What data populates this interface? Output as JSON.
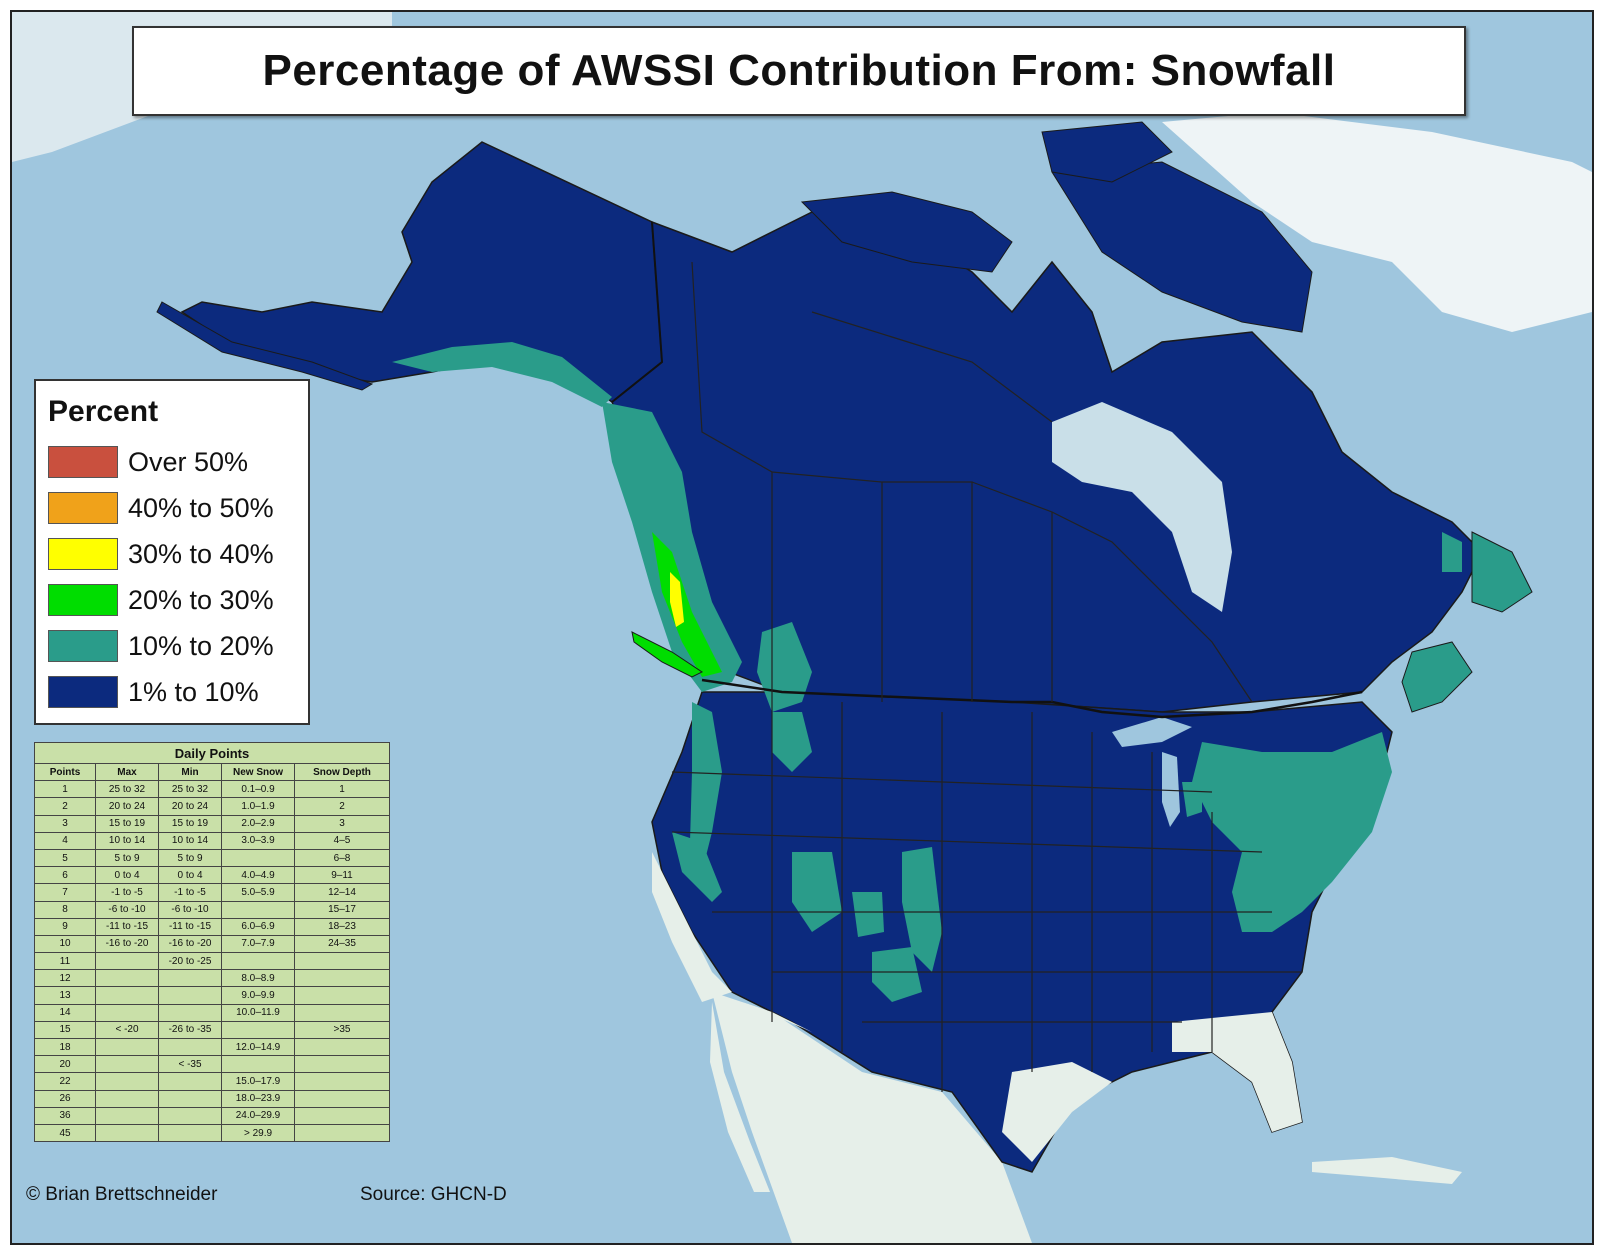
{
  "title": "Percentage of AWSSI Contribution From: Snowfall",
  "legend": {
    "title": "Percent",
    "items": [
      {
        "label": "Over 50%",
        "color": "#c9503e"
      },
      {
        "label": "40% to 50%",
        "color": "#f0a21a"
      },
      {
        "label": "30% to 40%",
        "color": "#ffff00"
      },
      {
        "label": "20% to 30%",
        "color": "#00dd00"
      },
      {
        "label": "10% to 20%",
        "color": "#2a9c8a"
      },
      {
        "label": "1% to 10%",
        "color": "#0c2a7e"
      }
    ]
  },
  "daily_points": {
    "caption": "Daily Points",
    "headers": [
      "Points",
      "Max",
      "Min",
      "New Snow",
      "Snow Depth"
    ],
    "rows": [
      [
        "1",
        "25 to 32",
        "25 to 32",
        "0.1–0.9",
        "1"
      ],
      [
        "2",
        "20 to 24",
        "20 to 24",
        "1.0–1.9",
        "2"
      ],
      [
        "3",
        "15 to 19",
        "15 to 19",
        "2.0–2.9",
        "3"
      ],
      [
        "4",
        "10 to 14",
        "10 to 14",
        "3.0–3.9",
        "4–5"
      ],
      [
        "5",
        "5 to 9",
        "5 to 9",
        "",
        "6–8"
      ],
      [
        "6",
        "0 to 4",
        "0 to 4",
        "4.0–4.9",
        "9–11"
      ],
      [
        "7",
        "-1 to -5",
        "-1 to -5",
        "5.0–5.9",
        "12–14"
      ],
      [
        "8",
        "-6 to -10",
        "-6 to -10",
        "",
        "15–17"
      ],
      [
        "9",
        "-11 to -15",
        "-11 to -15",
        "6.0–6.9",
        "18–23"
      ],
      [
        "10",
        "-16 to -20",
        "-16 to -20",
        "7.0–7.9",
        "24–35"
      ],
      [
        "11",
        "",
        "-20 to -25",
        "",
        ""
      ],
      [
        "12",
        "",
        "",
        "8.0–8.9",
        ""
      ],
      [
        "13",
        "",
        "",
        "9.0–9.9",
        ""
      ],
      [
        "14",
        "",
        "",
        "10.0–11.9",
        ""
      ],
      [
        "15",
        "< -20",
        "-26 to -35",
        "",
        ">35"
      ],
      [
        "18",
        "",
        "",
        "12.0–14.9",
        ""
      ],
      [
        "20",
        "",
        "< -35",
        "",
        ""
      ],
      [
        "22",
        "",
        "",
        "15.0–17.9",
        ""
      ],
      [
        "26",
        "",
        "",
        "18.0–23.9",
        ""
      ],
      [
        "36",
        "",
        "",
        "24.0–29.9",
        ""
      ],
      [
        "45",
        "",
        "",
        "> 29.9",
        ""
      ]
    ]
  },
  "credit": "© Brian Brettschneider",
  "source": "Source: GHCN-D",
  "colors": {
    "ocean": "#9fc6de",
    "ice": "#eaf2f5",
    "land_unshaded": "#e6efe9",
    "border": "#1a1a1a"
  }
}
